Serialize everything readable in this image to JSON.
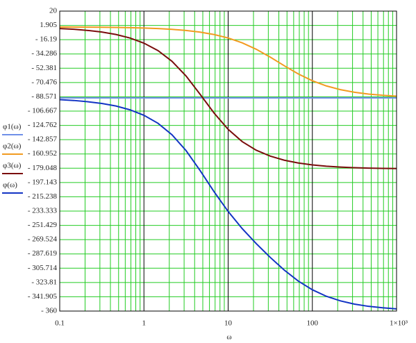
{
  "chart_data": {
    "type": "line",
    "x_label": "ω",
    "xscale": "log",
    "xlim": [
      0.1,
      1000
    ],
    "xticks": [
      0.1,
      1,
      10,
      100,
      {
        "value": 1000,
        "label": "1×10³"
      }
    ],
    "ylim": [
      -360,
      20
    ],
    "yticks": [
      20,
      1.905,
      {
        "value": -16.19,
        "label": "- 16.19"
      },
      {
        "value": -34.286,
        "label": "- 34.286"
      },
      {
        "value": -52.381,
        "label": "- 52.381"
      },
      {
        "value": -70.476,
        "label": "- 70.476"
      },
      {
        "value": -88.571,
        "label": "- 88.571"
      },
      {
        "value": -106.667,
        "label": "- 106.667"
      },
      {
        "value": -124.762,
        "label": "- 124.762"
      },
      {
        "value": -142.857,
        "label": "- 142.857"
      },
      {
        "value": -160.952,
        "label": "- 160.952"
      },
      {
        "value": -179.048,
        "label": "- 179.048"
      },
      {
        "value": -197.143,
        "label": "- 197.143"
      },
      {
        "value": -215.238,
        "label": "- 215.238"
      },
      {
        "value": -233.333,
        "label": "- 233.333"
      },
      {
        "value": -251.429,
        "label": "- 251.429"
      },
      {
        "value": -269.524,
        "label": "- 269.524"
      },
      {
        "value": -287.619,
        "label": "- 287.619"
      },
      {
        "value": -305.714,
        "label": "- 305.714"
      },
      {
        "value": -323.81,
        "label": "- 323.81"
      },
      {
        "value": -341.905,
        "label": "- 341.905"
      },
      {
        "value": -360,
        "label": "- 360"
      }
    ],
    "grid": true,
    "x": [
      0.1,
      0.147,
      0.215,
      0.316,
      0.464,
      0.681,
      1,
      1.468,
      2.154,
      3.162,
      4.642,
      6.813,
      10,
      14.68,
      21.54,
      31.62,
      46.42,
      68.13,
      100,
      146.8,
      215.4,
      316.2,
      464.2,
      681.3,
      1000
    ],
    "series": [
      {
        "name": "φ1(ω)",
        "color": "#6f8fe8",
        "values": [
          -90,
          -90,
          -90,
          -90,
          -90,
          -90,
          -90,
          -90,
          -90,
          -90,
          -90,
          -90,
          -90,
          -90,
          -90,
          -90,
          -90,
          -90,
          -90,
          -90,
          -90,
          -90,
          -90,
          -90,
          -90
        ]
      },
      {
        "name": "φ2(ω)",
        "color": "#f29a1f",
        "values": [
          -0.1,
          -0.2,
          -0.3,
          -0.5,
          -0.7,
          -1.0,
          -1.4,
          -2.1,
          -3.1,
          -4.5,
          -6.6,
          -9.7,
          -14.0,
          -20.2,
          -28.3,
          -38.3,
          -49.2,
          -59.6,
          -68.2,
          -74.8,
          -79.5,
          -82.8,
          -85.1,
          -86.6,
          -87.7
        ]
      },
      {
        "name": "φ3(ω)",
        "color": "#7a0c0c",
        "values": [
          -2.1,
          -3.0,
          -4.5,
          -6.5,
          -9.6,
          -14.0,
          -20.6,
          -30.0,
          -43.6,
          -62.2,
          -85.3,
          -109.2,
          -129.8,
          -145.3,
          -156.2,
          -163.7,
          -168.9,
          -172.4,
          -174.8,
          -176.5,
          -177.6,
          -178.4,
          -178.9,
          -179.2,
          -179.5
        ]
      },
      {
        "name": "φ(ω)",
        "color": "#1233c4",
        "values": [
          -92.2,
          -93.2,
          -94.8,
          -97.0,
          -100.2,
          -105.0,
          -112.0,
          -122.1,
          -136.7,
          -156.7,
          -181.9,
          -208.9,
          -233.8,
          -255.5,
          -274.5,
          -292.0,
          -308.1,
          -322.0,
          -333.0,
          -341.3,
          -347.1,
          -351.2,
          -354.0,
          -355.8,
          -357.2
        ]
      }
    ]
  }
}
